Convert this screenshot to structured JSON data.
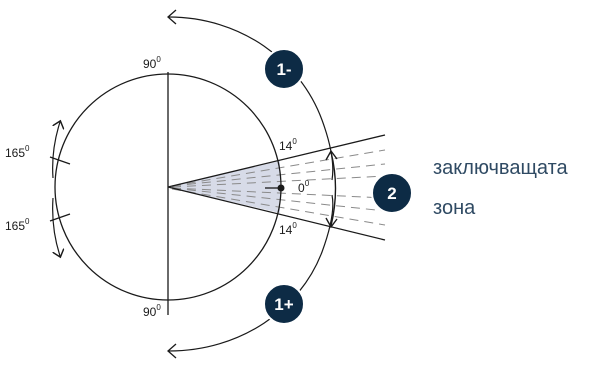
{
  "angle_labels": {
    "top_value": "90",
    "top_sup": "0",
    "bottom_value": "90",
    "bottom_sup": "0",
    "left_upper_value": "165",
    "left_upper_sup": "0",
    "left_lower_value": "165",
    "left_lower_sup": "0",
    "cone_upper_value": "14",
    "cone_upper_sup": "0",
    "cone_lower_value": "14",
    "cone_lower_sup": "0",
    "center_value": "0",
    "center_sup": "0"
  },
  "badges": {
    "upper": "1-",
    "lower": "1+",
    "zone": "2"
  },
  "zone_label": {
    "line1": "заключващата",
    "line2": "зона"
  },
  "colors": {
    "line": "#1a1a1a",
    "badge_fill": "#0d2b45",
    "badge_text": "#ffffff",
    "cone_fill": "#d7dbe8",
    "dashes": "#8a8a8a",
    "zone_text": "#2f4a63"
  }
}
